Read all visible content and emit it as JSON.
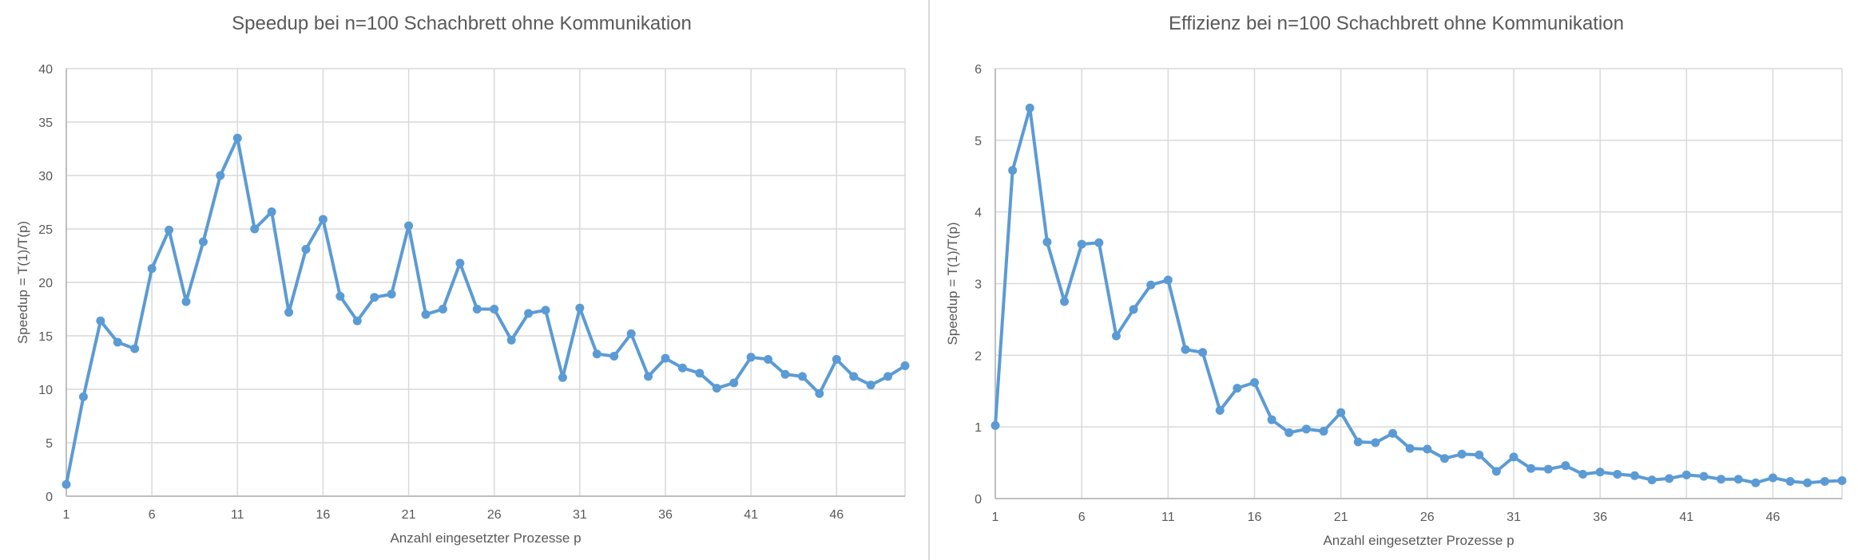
{
  "colors": {
    "series": "#5b9bd5",
    "grid": "#d9d9d9",
    "text": "#595959"
  },
  "chart_data": [
    {
      "type": "line",
      "title": "Speedup bei n=100 Schachbrett ohne Kommunikation",
      "xlabel": "Anzahl eingesetzter Prozesse p",
      "ylabel": "Speedup = T(1)/T(p)",
      "xlim": [
        1,
        50
      ],
      "ylim": [
        0,
        40
      ],
      "xticks": [
        1,
        6,
        11,
        16,
        21,
        26,
        31,
        36,
        41,
        46
      ],
      "yticks": [
        0,
        5,
        10,
        15,
        20,
        25,
        30,
        35,
        40
      ],
      "grid": true,
      "series": [
        {
          "x": [
            1,
            2,
            3,
            4,
            5,
            6,
            7,
            8,
            9,
            10,
            11,
            12,
            13,
            14,
            15,
            16,
            17,
            18,
            19,
            20,
            21,
            22,
            23,
            24,
            25,
            26,
            27,
            28,
            29,
            30,
            31,
            32,
            33,
            34,
            35,
            36,
            37,
            38,
            39,
            40,
            41,
            42,
            43,
            44,
            45,
            46,
            47,
            48,
            49,
            50
          ],
          "values": [
            1.1,
            9.3,
            16.4,
            14.4,
            13.8,
            21.3,
            24.9,
            18.2,
            23.8,
            30.0,
            33.5,
            25.0,
            26.6,
            17.2,
            23.1,
            25.9,
            18.7,
            16.4,
            18.6,
            18.9,
            25.3,
            17.0,
            17.5,
            21.8,
            17.5,
            17.5,
            14.6,
            17.1,
            17.4,
            11.1,
            17.6,
            13.3,
            13.1,
            15.2,
            11.2,
            12.9,
            12.0,
            11.5,
            10.1,
            10.6,
            13.0,
            12.8,
            11.4,
            11.2,
            9.6,
            12.8,
            11.2,
            10.4,
            11.2,
            12.2
          ]
        }
      ]
    },
    {
      "type": "line",
      "title": "Effizienz bei n=100 Schachbrett ohne Kommunikation",
      "xlabel": "Anzahl eingesetzter Prozesse p",
      "ylabel": "Speedup = T(1)/T(p)",
      "xlim": [
        1,
        50
      ],
      "ylim": [
        0,
        6
      ],
      "xticks": [
        1,
        6,
        11,
        16,
        21,
        26,
        31,
        36,
        41,
        46
      ],
      "yticks": [
        0,
        1,
        2,
        3,
        4,
        5,
        6
      ],
      "grid": true,
      "series": [
        {
          "x": [
            1,
            2,
            3,
            4,
            5,
            6,
            7,
            8,
            9,
            10,
            11,
            12,
            13,
            14,
            15,
            16,
            17,
            18,
            19,
            20,
            21,
            22,
            23,
            24,
            25,
            26,
            27,
            28,
            29,
            30,
            31,
            32,
            33,
            34,
            35,
            36,
            37,
            38,
            39,
            40,
            41,
            42,
            43,
            44,
            45,
            46,
            47,
            48,
            49,
            50
          ],
          "values": [
            1.02,
            4.58,
            5.45,
            3.58,
            2.75,
            3.55,
            3.57,
            2.27,
            2.64,
            2.98,
            3.05,
            2.08,
            2.04,
            1.23,
            1.54,
            1.62,
            1.1,
            0.92,
            0.97,
            0.94,
            1.2,
            0.79,
            0.78,
            0.91,
            0.7,
            0.69,
            0.56,
            0.62,
            0.61,
            0.38,
            0.58,
            0.42,
            0.41,
            0.46,
            0.34,
            0.37,
            0.34,
            0.32,
            0.26,
            0.28,
            0.33,
            0.31,
            0.27,
            0.27,
            0.22,
            0.29,
            0.24,
            0.22,
            0.24,
            0.25
          ]
        }
      ]
    }
  ]
}
